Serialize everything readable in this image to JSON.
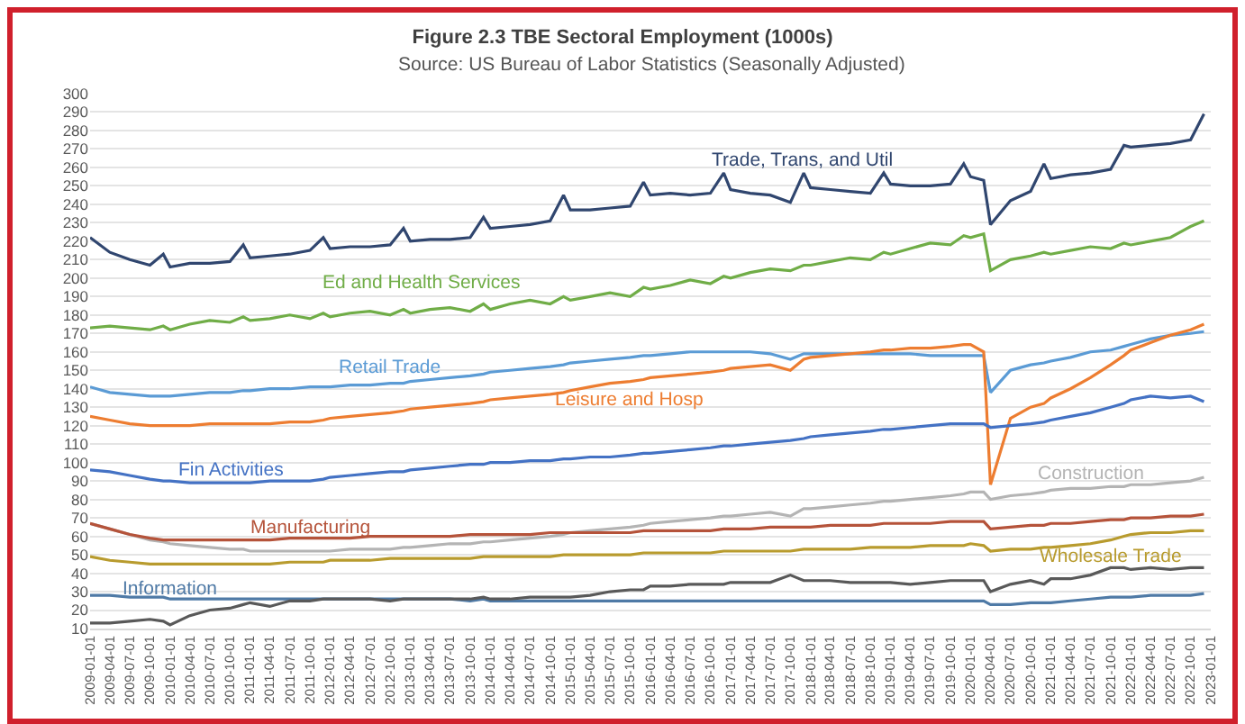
{
  "chart_data": {
    "type": "line",
    "title": "Figure 2.3 TBE Sectoral Employment (1000s)",
    "subtitle": "Source: US Bureau of Labor Statistics (Seasonally Adjusted)",
    "x": [
      "2009-01",
      "2009-04",
      "2009-07",
      "2009-10",
      "2009-12",
      "2010-01",
      "2010-04",
      "2010-07",
      "2010-10",
      "2010-12",
      "2011-01",
      "2011-04",
      "2011-07",
      "2011-10",
      "2011-12",
      "2012-01",
      "2012-04",
      "2012-07",
      "2012-10",
      "2012-12",
      "2013-01",
      "2013-04",
      "2013-07",
      "2013-10",
      "2013-12",
      "2014-01",
      "2014-04",
      "2014-07",
      "2014-10",
      "2014-12",
      "2015-01",
      "2015-04",
      "2015-07",
      "2015-10",
      "2015-12",
      "2016-01",
      "2016-04",
      "2016-07",
      "2016-10",
      "2016-12",
      "2017-01",
      "2017-04",
      "2017-07",
      "2017-10",
      "2017-12",
      "2018-01",
      "2018-04",
      "2018-07",
      "2018-10",
      "2018-12",
      "2019-01",
      "2019-04",
      "2019-07",
      "2019-10",
      "2019-12",
      "2020-01",
      "2020-03",
      "2020-04",
      "2020-07",
      "2020-10",
      "2020-12",
      "2021-01",
      "2021-04",
      "2021-07",
      "2021-10",
      "2021-12",
      "2022-01",
      "2022-04",
      "2022-07",
      "2022-10",
      "2022-12"
    ],
    "series": [
      {
        "name": "Trade, Trans, and Util",
        "color": "#30466f",
        "values": [
          222,
          214,
          210,
          207,
          213,
          206,
          208,
          208,
          209,
          218,
          211,
          212,
          213,
          215,
          222,
          216,
          217,
          217,
          218,
          227,
          220,
          221,
          221,
          222,
          233,
          227,
          228,
          229,
          231,
          245,
          237,
          237,
          238,
          239,
          252,
          245,
          246,
          245,
          246,
          257,
          248,
          246,
          245,
          241,
          257,
          249,
          248,
          247,
          246,
          257,
          251,
          250,
          250,
          251,
          262,
          255,
          253,
          229,
          242,
          247,
          262,
          254,
          256,
          257,
          259,
          272,
          271,
          272,
          273,
          275,
          289
        ]
      },
      {
        "name": "Ed and Health Services",
        "color": "#70ad47",
        "values": [
          173,
          174,
          173,
          172,
          174,
          172,
          175,
          177,
          176,
          179,
          177,
          178,
          180,
          178,
          181,
          179,
          181,
          182,
          180,
          183,
          181,
          183,
          184,
          182,
          186,
          183,
          186,
          188,
          186,
          190,
          188,
          190,
          192,
          190,
          195,
          194,
          196,
          199,
          197,
          201,
          200,
          203,
          205,
          204,
          207,
          207,
          209,
          211,
          210,
          214,
          213,
          216,
          219,
          218,
          223,
          222,
          224,
          204,
          210,
          212,
          214,
          213,
          215,
          217,
          216,
          219,
          218,
          220,
          222,
          228,
          231
        ]
      },
      {
        "name": "Retail Trade",
        "color": "#5b9bd5",
        "values": [
          141,
          138,
          137,
          136,
          136,
          136,
          137,
          138,
          138,
          139,
          139,
          140,
          140,
          141,
          141,
          141,
          142,
          142,
          143,
          143,
          144,
          145,
          146,
          147,
          148,
          149,
          150,
          151,
          152,
          153,
          154,
          155,
          156,
          157,
          158,
          158,
          159,
          160,
          160,
          160,
          160,
          160,
          159,
          156,
          159,
          159,
          159,
          159,
          159,
          159,
          159,
          159,
          158,
          158,
          158,
          158,
          158,
          138,
          150,
          153,
          154,
          155,
          157,
          160,
          161,
          163,
          164,
          167,
          169,
          170,
          171
        ]
      },
      {
        "name": "Leisure and Hosp",
        "color": "#ed7d31",
        "values": [
          125,
          123,
          121,
          120,
          120,
          120,
          120,
          121,
          121,
          121,
          121,
          121,
          122,
          122,
          123,
          124,
          125,
          126,
          127,
          128,
          129,
          130,
          131,
          132,
          133,
          134,
          135,
          136,
          137,
          138,
          139,
          141,
          143,
          144,
          145,
          146,
          147,
          148,
          149,
          150,
          151,
          152,
          153,
          150,
          156,
          157,
          158,
          159,
          160,
          161,
          161,
          162,
          162,
          163,
          164,
          164,
          160,
          88,
          124,
          130,
          132,
          135,
          140,
          146,
          153,
          158,
          161,
          165,
          169,
          172,
          175
        ]
      },
      {
        "name": "Fin Activities",
        "color": "#4472c4",
        "values": [
          96,
          95,
          93,
          91,
          90,
          90,
          89,
          89,
          89,
          89,
          89,
          90,
          90,
          90,
          91,
          92,
          93,
          94,
          95,
          95,
          96,
          97,
          98,
          99,
          99,
          100,
          100,
          101,
          101,
          102,
          102,
          103,
          103,
          104,
          105,
          105,
          106,
          107,
          108,
          109,
          109,
          110,
          111,
          112,
          113,
          114,
          115,
          116,
          117,
          118,
          118,
          119,
          120,
          121,
          121,
          121,
          121,
          119,
          120,
          121,
          122,
          123,
          125,
          127,
          130,
          132,
          134,
          136,
          135,
          136,
          133
        ]
      },
      {
        "name": "Construction",
        "color": "#b4b4b4",
        "values": [
          67,
          64,
          61,
          58,
          57,
          56,
          55,
          54,
          53,
          53,
          52,
          52,
          52,
          52,
          52,
          52,
          53,
          53,
          53,
          54,
          54,
          55,
          56,
          56,
          57,
          57,
          58,
          59,
          60,
          61,
          62,
          63,
          64,
          65,
          66,
          67,
          68,
          69,
          70,
          71,
          71,
          72,
          73,
          71,
          75,
          75,
          76,
          77,
          78,
          79,
          79,
          80,
          81,
          82,
          83,
          84,
          84,
          80,
          82,
          83,
          84,
          85,
          86,
          86,
          87,
          87,
          88,
          88,
          89,
          90,
          92
        ]
      },
      {
        "name": "Manufacturing",
        "color": "#b5533a",
        "values": [
          67,
          64,
          61,
          59,
          58,
          58,
          58,
          58,
          58,
          58,
          58,
          58,
          59,
          59,
          59,
          59,
          59,
          60,
          60,
          60,
          60,
          60,
          60,
          61,
          61,
          61,
          61,
          61,
          62,
          62,
          62,
          62,
          62,
          62,
          63,
          63,
          63,
          63,
          63,
          64,
          64,
          64,
          65,
          65,
          65,
          65,
          66,
          66,
          66,
          67,
          67,
          67,
          67,
          68,
          68,
          68,
          68,
          64,
          65,
          66,
          66,
          67,
          67,
          68,
          69,
          69,
          70,
          70,
          71,
          71,
          72
        ]
      },
      {
        "name": "Wholesale Trade",
        "color": "#b89b2e",
        "values": [
          49,
          47,
          46,
          45,
          45,
          45,
          45,
          45,
          45,
          45,
          45,
          45,
          46,
          46,
          46,
          47,
          47,
          47,
          48,
          48,
          48,
          48,
          48,
          48,
          49,
          49,
          49,
          49,
          49,
          50,
          50,
          50,
          50,
          50,
          51,
          51,
          51,
          51,
          51,
          52,
          52,
          52,
          52,
          52,
          53,
          53,
          53,
          53,
          54,
          54,
          54,
          54,
          55,
          55,
          55,
          56,
          55,
          52,
          53,
          53,
          54,
          54,
          55,
          56,
          58,
          60,
          61,
          62,
          62,
          63,
          63
        ]
      },
      {
        "name": "Information",
        "color": "#4f7aa6",
        "values": [
          28,
          28,
          27,
          27,
          27,
          26,
          26,
          26,
          26,
          26,
          26,
          26,
          26,
          26,
          26,
          26,
          26,
          26,
          26,
          26,
          26,
          26,
          26,
          25,
          26,
          25,
          25,
          25,
          25,
          25,
          25,
          25,
          25,
          25,
          25,
          25,
          25,
          25,
          25,
          25,
          25,
          25,
          25,
          25,
          25,
          25,
          25,
          25,
          25,
          25,
          25,
          25,
          25,
          25,
          25,
          25,
          25,
          23,
          23,
          24,
          24,
          24,
          25,
          26,
          27,
          27,
          27,
          28,
          28,
          28,
          29
        ]
      },
      {
        "color": "#595959",
        "values": [
          13,
          13,
          14,
          15,
          14,
          12,
          17,
          20,
          21,
          23,
          24,
          22,
          25,
          25,
          26,
          26,
          26,
          26,
          25,
          26,
          26,
          26,
          26,
          26,
          27,
          26,
          26,
          27,
          27,
          27,
          27,
          28,
          30,
          31,
          31,
          33,
          33,
          34,
          34,
          34,
          35,
          35,
          35,
          39,
          36,
          36,
          36,
          35,
          35,
          35,
          35,
          34,
          35,
          36,
          36,
          36,
          36,
          30,
          34,
          36,
          34,
          37,
          37,
          39,
          43,
          43,
          42,
          43,
          42,
          43,
          43
        ]
      }
    ],
    "xlim": [
      "2009-01-01",
      "2023-01-01"
    ],
    "xticks": [
      "2009-01-01",
      "2009-04-01",
      "2009-07-01",
      "2009-10-01",
      "2010-01-01",
      "2010-04-01",
      "2010-07-01",
      "2010-10-01",
      "2011-01-01",
      "2011-04-01",
      "2011-07-01",
      "2011-10-01",
      "2012-01-01",
      "2012-04-01",
      "2012-07-01",
      "2012-10-01",
      "2013-01-01",
      "2013-04-01",
      "2013-07-01",
      "2013-10-01",
      "2014-01-01",
      "2014-04-01",
      "2014-07-01",
      "2014-10-01",
      "2015-01-01",
      "2015-04-01",
      "2015-07-01",
      "2015-10-01",
      "2016-01-01",
      "2016-04-01",
      "2016-07-01",
      "2016-10-01",
      "2017-01-01",
      "2017-04-01",
      "2017-07-01",
      "2017-10-01",
      "2018-01-01",
      "2018-04-01",
      "2018-07-01",
      "2018-10-01",
      "2019-01-01",
      "2019-04-01",
      "2019-07-01",
      "2019-10-01",
      "2020-01-01",
      "2020-04-01",
      "2020-07-01",
      "2020-10-01",
      "2021-01-01",
      "2021-04-01",
      "2021-07-01",
      "2021-10-01",
      "2022-01-01",
      "2022-04-01",
      "2022-07-01",
      "2022-10-01",
      "2023-01-01"
    ],
    "ylim": [
      10,
      300
    ],
    "yticks": [
      10,
      20,
      30,
      40,
      50,
      60,
      70,
      80,
      90,
      100,
      110,
      120,
      130,
      140,
      150,
      160,
      170,
      180,
      190,
      200,
      210,
      220,
      230,
      240,
      250,
      260,
      270,
      280,
      290,
      300
    ],
    "grid": "y",
    "legend": false,
    "line_style": "solid"
  }
}
